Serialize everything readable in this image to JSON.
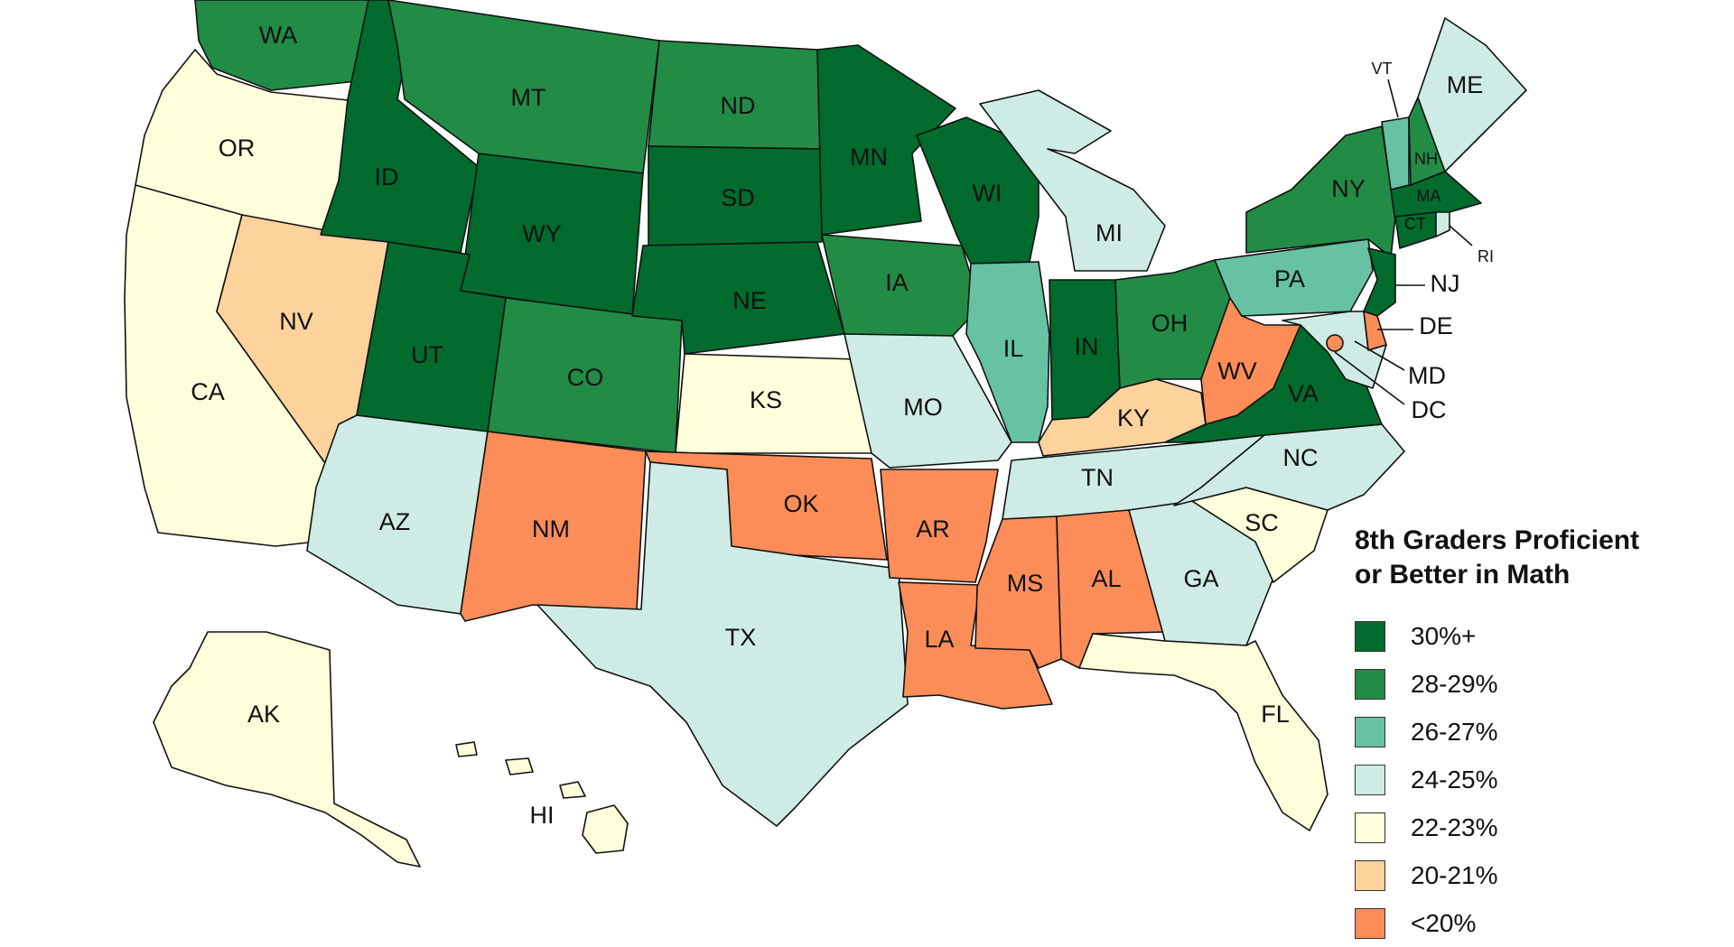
{
  "legend": {
    "title_line1": "8th Graders Proficient",
    "title_line2": "or Better in Math",
    "items": [
      {
        "label": "30%+",
        "color": "#006b2d"
      },
      {
        "label": "28-29%",
        "color": "#228b45"
      },
      {
        "label": "26-27%",
        "color": "#66c2a2"
      },
      {
        "label": "24-25%",
        "color": "#ceece5"
      },
      {
        "label": "22-23%",
        "color": "#ffffdc"
      },
      {
        "label": "20-21%",
        "color": "#fdd29c"
      },
      {
        "label": "<20%",
        "color": "#fc8d59"
      }
    ]
  },
  "states": [
    {
      "abbr": "WA",
      "bracket": 1
    },
    {
      "abbr": "OR",
      "bracket": 4
    },
    {
      "abbr": "CA",
      "bracket": 4
    },
    {
      "abbr": "NV",
      "bracket": 5
    },
    {
      "abbr": "ID",
      "bracket": 0
    },
    {
      "abbr": "MT",
      "bracket": 1
    },
    {
      "abbr": "WY",
      "bracket": 0
    },
    {
      "abbr": "UT",
      "bracket": 0
    },
    {
      "abbr": "AZ",
      "bracket": 3
    },
    {
      "abbr": "CO",
      "bracket": 1
    },
    {
      "abbr": "NM",
      "bracket": 6
    },
    {
      "abbr": "ND",
      "bracket": 1
    },
    {
      "abbr": "SD",
      "bracket": 0
    },
    {
      "abbr": "NE",
      "bracket": 0
    },
    {
      "abbr": "KS",
      "bracket": 4
    },
    {
      "abbr": "OK",
      "bracket": 6
    },
    {
      "abbr": "TX",
      "bracket": 3
    },
    {
      "abbr": "MN",
      "bracket": 0
    },
    {
      "abbr": "IA",
      "bracket": 1
    },
    {
      "abbr": "MO",
      "bracket": 3
    },
    {
      "abbr": "AR",
      "bracket": 6
    },
    {
      "abbr": "LA",
      "bracket": 6
    },
    {
      "abbr": "WI",
      "bracket": 0
    },
    {
      "abbr": "IL",
      "bracket": 2
    },
    {
      "abbr": "MI",
      "bracket": 3
    },
    {
      "abbr": "IN",
      "bracket": 0
    },
    {
      "abbr": "OH",
      "bracket": 1
    },
    {
      "abbr": "KY",
      "bracket": 5
    },
    {
      "abbr": "TN",
      "bracket": 3
    },
    {
      "abbr": "MS",
      "bracket": 6
    },
    {
      "abbr": "AL",
      "bracket": 6
    },
    {
      "abbr": "GA",
      "bracket": 3
    },
    {
      "abbr": "FL",
      "bracket": 4
    },
    {
      "abbr": "SC",
      "bracket": 4
    },
    {
      "abbr": "NC",
      "bracket": 3
    },
    {
      "abbr": "VA",
      "bracket": 0
    },
    {
      "abbr": "WV",
      "bracket": 6
    },
    {
      "abbr": "PA",
      "bracket": 2
    },
    {
      "abbr": "NY",
      "bracket": 1
    },
    {
      "abbr": "VT",
      "bracket": 2
    },
    {
      "abbr": "NH",
      "bracket": 1
    },
    {
      "abbr": "ME",
      "bracket": 3
    },
    {
      "abbr": "MA",
      "bracket": 0
    },
    {
      "abbr": "CT",
      "bracket": 0
    },
    {
      "abbr": "RI",
      "bracket": 3
    },
    {
      "abbr": "NJ",
      "bracket": 0
    },
    {
      "abbr": "DE",
      "bracket": 6
    },
    {
      "abbr": "MD",
      "bracket": 3
    },
    {
      "abbr": "DC",
      "bracket": 6
    },
    {
      "abbr": "AK",
      "bracket": 4
    },
    {
      "abbr": "HI",
      "bracket": 4
    }
  ]
}
